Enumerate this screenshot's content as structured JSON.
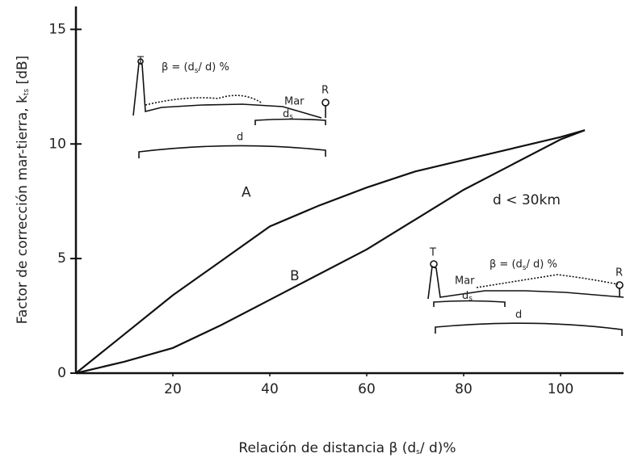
{
  "chart_data": {
    "type": "line",
    "y_label": {
      "text": "Factor de corrección mar-tierra, k",
      "sub": "ts",
      "end": " [dB]"
    },
    "x_label": {
      "text": "Relación de distancia β (d",
      "sub": "s",
      "end": "/ d)%"
    },
    "x": [
      0,
      10,
      20,
      30,
      40,
      50,
      60,
      70,
      80,
      90,
      100,
      105
    ],
    "series": [
      {
        "name": "A",
        "color": "#111111",
        "values": [
          0,
          1.7,
          3.4,
          4.9,
          6.4,
          7.3,
          8.1,
          8.8,
          9.3,
          9.8,
          10.3,
          10.6
        ]
      },
      {
        "name": "B",
        "color": "#111111",
        "values": [
          0,
          0.5,
          1.1,
          2.1,
          3.2,
          4.3,
          5.4,
          6.7,
          8.0,
          9.1,
          10.2,
          10.6
        ]
      }
    ],
    "xlim": [
      0,
      113
    ],
    "ylim": [
      0,
      16
    ],
    "xticks": [
      20,
      40,
      60,
      80,
      100
    ],
    "yticks": [
      0,
      5,
      10,
      15
    ],
    "grid": false,
    "annotation": "d < 30km",
    "insets": [
      {
        "t": "T",
        "r": "R",
        "formula": "β = (d",
        "formula_sub": "s",
        "formula_end": "/ d) %",
        "sea": "Mar",
        "ds": "d",
        "ds_sub": "s",
        "d": "d"
      },
      {
        "t": "T",
        "r": "R",
        "formula": "β = (d",
        "formula_sub": "s",
        "formula_end": "/ d) %",
        "sea": "Mar",
        "ds": "d",
        "ds_sub": "s",
        "d": "d"
      }
    ]
  }
}
